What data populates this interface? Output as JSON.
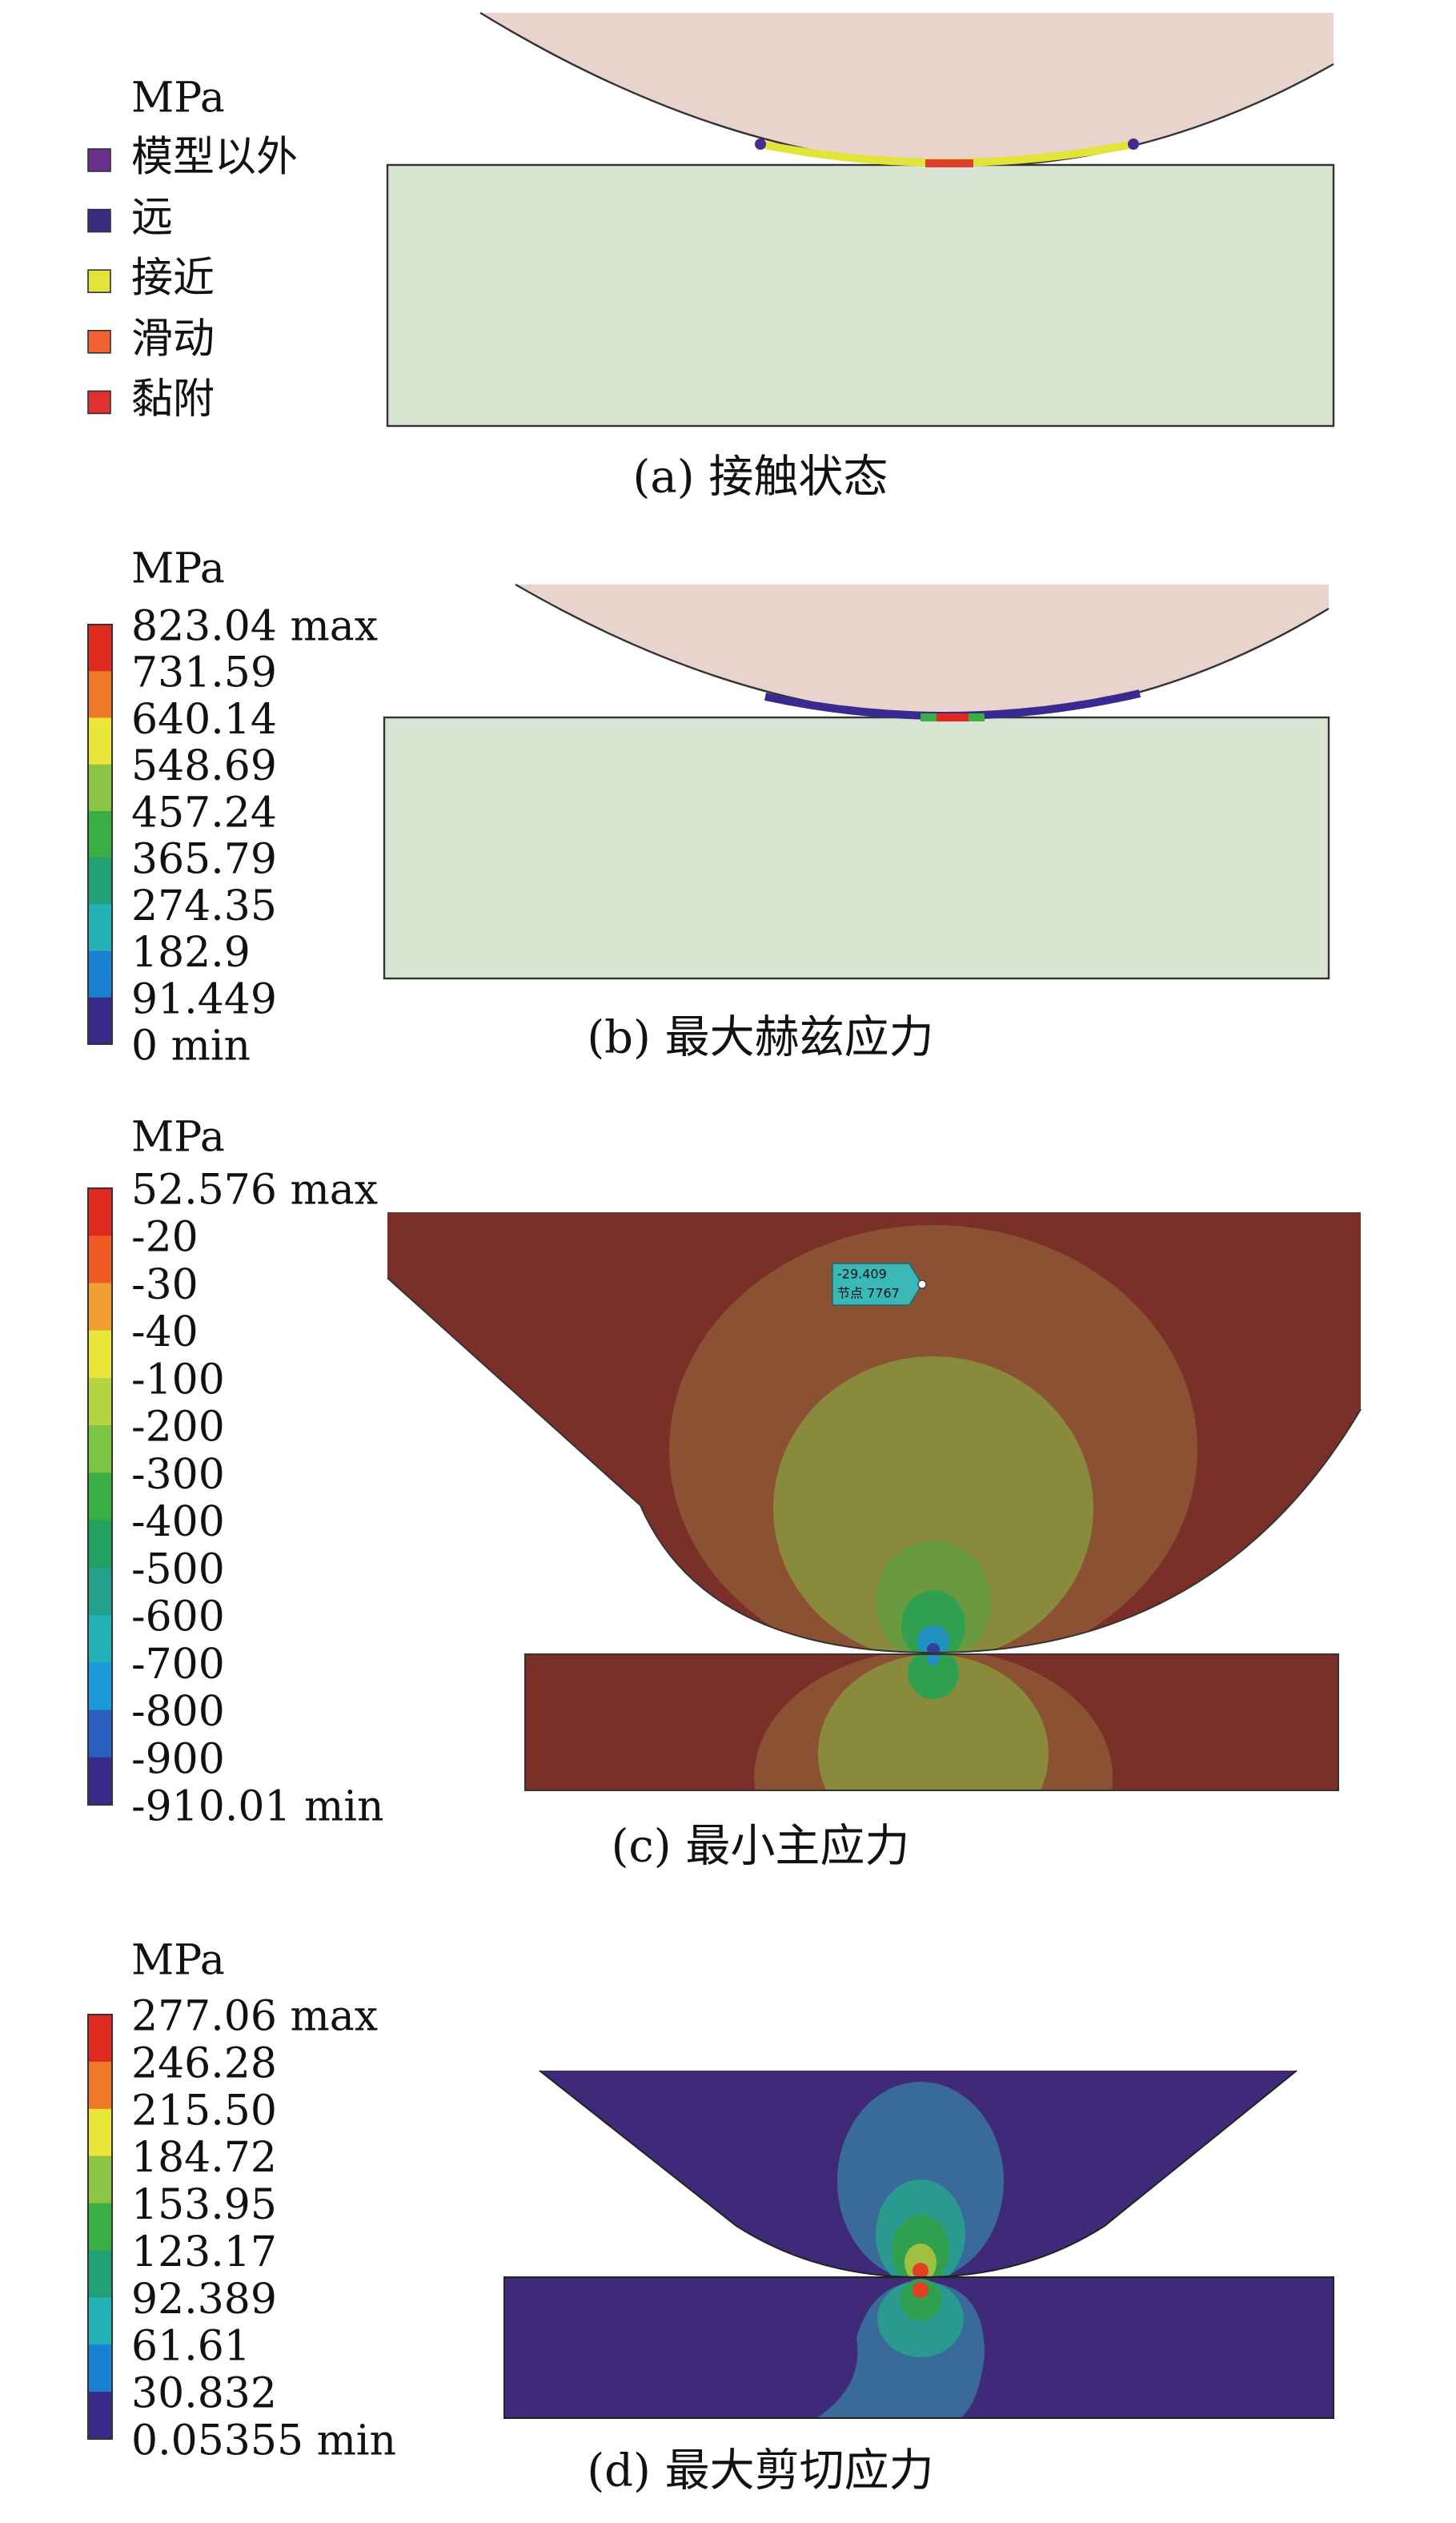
{
  "panels": [
    {
      "unit": "MPa",
      "caption": "(a) 接触状态",
      "legend": [
        {
          "label": "模型以外",
          "color": "#6a3090"
        },
        {
          "label": "远",
          "color": "#3a2a80"
        },
        {
          "label": "接近",
          "color": "#e2e43a"
        },
        {
          "label": "滑动",
          "color": "#f06030"
        },
        {
          "label": "黏附",
          "color": "#e03030"
        }
      ]
    },
    {
      "unit": "MPa",
      "caption": "(b) 最大赫兹应力",
      "scale_labels": [
        "823.04 max",
        "731.59",
        "640.14",
        "548.69",
        "457.24",
        "365.79",
        "274.35",
        "182.9",
        "91.449",
        "0 min"
      ],
      "scale_colors": [
        "#e02a20",
        "#f07a28",
        "#ece63a",
        "#8cc444",
        "#3aae44",
        "#22a078",
        "#22b2b8",
        "#1a80d0",
        "#3a2a8a"
      ]
    },
    {
      "unit": "MPa",
      "caption": "(c) 最小主应力",
      "scale_labels": [
        "52.576 max",
        "-20",
        "-30",
        "-40",
        "-100",
        "-200",
        "-300",
        "-400",
        "-500",
        "-600",
        "-700",
        "-800",
        "-900",
        "-910.01 min"
      ],
      "scale_colors": [
        "#e02a20",
        "#f05a24",
        "#f0a030",
        "#ece63a",
        "#b4d444",
        "#7cc444",
        "#3aae44",
        "#22a060",
        "#22a08c",
        "#22b2b8",
        "#1a9ad8",
        "#2a60c0",
        "#3a2a8a"
      ],
      "probe": {
        "value": "-29.409",
        "node": "节点 7767"
      }
    },
    {
      "unit": "MPa",
      "caption": "(d) 最大剪切应力",
      "scale_labels": [
        "277.06 max",
        "246.28",
        "215.50",
        "184.72",
        "153.95",
        "123.17",
        "92.389",
        "61.61",
        "30.832",
        "0.05355 min"
      ],
      "scale_colors": [
        "#e02a20",
        "#f07a28",
        "#ece63a",
        "#8cc444",
        "#3aae44",
        "#22a078",
        "#22b2b8",
        "#1a80d0",
        "#3a2a8a"
      ]
    }
  ]
}
